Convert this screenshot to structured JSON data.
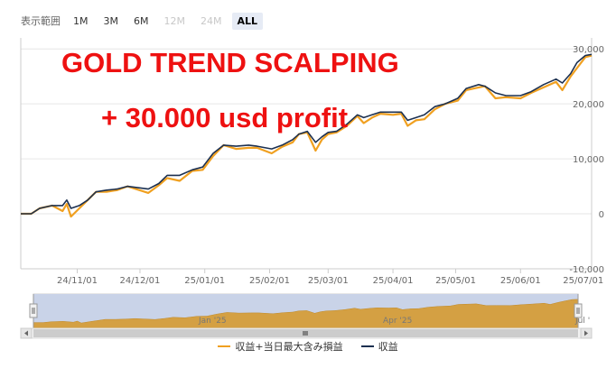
{
  "range_selector": {
    "label": "表示範囲",
    "buttons": [
      {
        "label": "1M",
        "state": "enabled"
      },
      {
        "label": "3M",
        "state": "enabled"
      },
      {
        "label": "6M",
        "state": "enabled"
      },
      {
        "label": "12M",
        "state": "disabled"
      },
      {
        "label": "24M",
        "state": "disabled"
      },
      {
        "label": "ALL",
        "state": "active"
      }
    ]
  },
  "banner": {
    "line1": "GOLD TREND SCALPING",
    "line2": "+ 30.000 usd profit",
    "color": "#ee1111"
  },
  "navigator": {
    "labels": [
      "Jan '25",
      "Apr '25",
      "Jul '"
    ]
  },
  "legend": {
    "items": [
      {
        "label": "収益+当日最大含み損益",
        "color": "#f0a020"
      },
      {
        "label": "収益",
        "color": "#1c3050"
      }
    ]
  },
  "colors": {
    "profit_line": "#1c3050",
    "drawdown_line": "#f0a020",
    "navigator_fill": "#d4a043",
    "navigator_mask": "#c9d3e8",
    "grid": "#e6e6e6"
  },
  "chart_data": {
    "type": "line",
    "x_tick_labels": [
      "24/11/01",
      "24/12/01",
      "25/01/01",
      "25/02/01",
      "25/03/01",
      "25/04/01",
      "25/05/01",
      "25/06/01",
      "25/07/01"
    ],
    "y_tick_labels": [
      "30,000",
      "20,000",
      "10,000",
      "0",
      "-10,000"
    ],
    "ylim": [
      -10000,
      32000
    ],
    "xlim": [
      "2024-10-05",
      "2025-07-05"
    ],
    "grid": "horizontal",
    "legend_position": "bottom-center",
    "x": [
      "2024-10-05",
      "2024-10-10",
      "2024-10-14",
      "2024-10-20",
      "2024-10-25",
      "2024-10-27",
      "2024-10-29",
      "2024-11-02",
      "2024-11-06",
      "2024-11-10",
      "2024-11-15",
      "2024-11-20",
      "2024-11-25",
      "2024-12-05",
      "2024-12-10",
      "2024-12-14",
      "2024-12-20",
      "2024-12-26",
      "2024-12-31",
      "2025-01-05",
      "2025-01-10",
      "2025-01-16",
      "2025-01-22",
      "2025-01-26",
      "2025-02-02",
      "2025-02-07",
      "2025-02-12",
      "2025-02-15",
      "2025-02-19",
      "2025-02-23",
      "2025-02-26",
      "2025-03-01",
      "2025-03-05",
      "2025-03-10",
      "2025-03-15",
      "2025-03-18",
      "2025-03-22",
      "2025-03-26",
      "2025-04-01",
      "2025-04-05",
      "2025-04-08",
      "2025-04-12",
      "2025-04-16",
      "2025-04-21",
      "2025-04-26",
      "2025-05-02",
      "2025-05-06",
      "2025-05-12",
      "2025-05-15",
      "2025-05-20",
      "2025-05-25",
      "2025-06-01",
      "2025-06-06",
      "2025-06-12",
      "2025-06-18",
      "2025-06-21",
      "2025-06-25",
      "2025-06-28",
      "2025-07-02",
      "2025-07-05"
    ],
    "series": [
      {
        "name": "収益+当日最大含み損益",
        "values": [
          0,
          0,
          1000,
          1500,
          500,
          1800,
          -500,
          1000,
          2500,
          4000,
          4000,
          4300,
          5000,
          3800,
          5200,
          6500,
          6000,
          7800,
          8000,
          10500,
          12500,
          11800,
          12000,
          12000,
          11000,
          12200,
          13000,
          14500,
          14800,
          11500,
          13500,
          14500,
          14800,
          16000,
          17800,
          16500,
          17500,
          18200,
          18000,
          18200,
          16000,
          17000,
          17200,
          19000,
          20000,
          20600,
          22500,
          23000,
          23200,
          21000,
          21200,
          21000,
          22000,
          23000,
          24000,
          22500,
          25000,
          26500,
          28500,
          28800
        ]
      },
      {
        "name": "収益",
        "values": [
          0,
          0,
          1000,
          1500,
          1500,
          2500,
          1000,
          1500,
          2500,
          4000,
          4300,
          4500,
          5000,
          4500,
          5500,
          7000,
          7000,
          8000,
          8500,
          11000,
          12500,
          12300,
          12500,
          12300,
          11800,
          12500,
          13500,
          14500,
          15000,
          13000,
          14000,
          14800,
          15000,
          16300,
          18000,
          17500,
          18000,
          18500,
          18500,
          18500,
          17000,
          17500,
          18000,
          19500,
          20000,
          21000,
          22800,
          23500,
          23200,
          22000,
          21500,
          21500,
          22200,
          23500,
          24500,
          23800,
          25500,
          27500,
          28800,
          29000
        ]
      }
    ]
  }
}
